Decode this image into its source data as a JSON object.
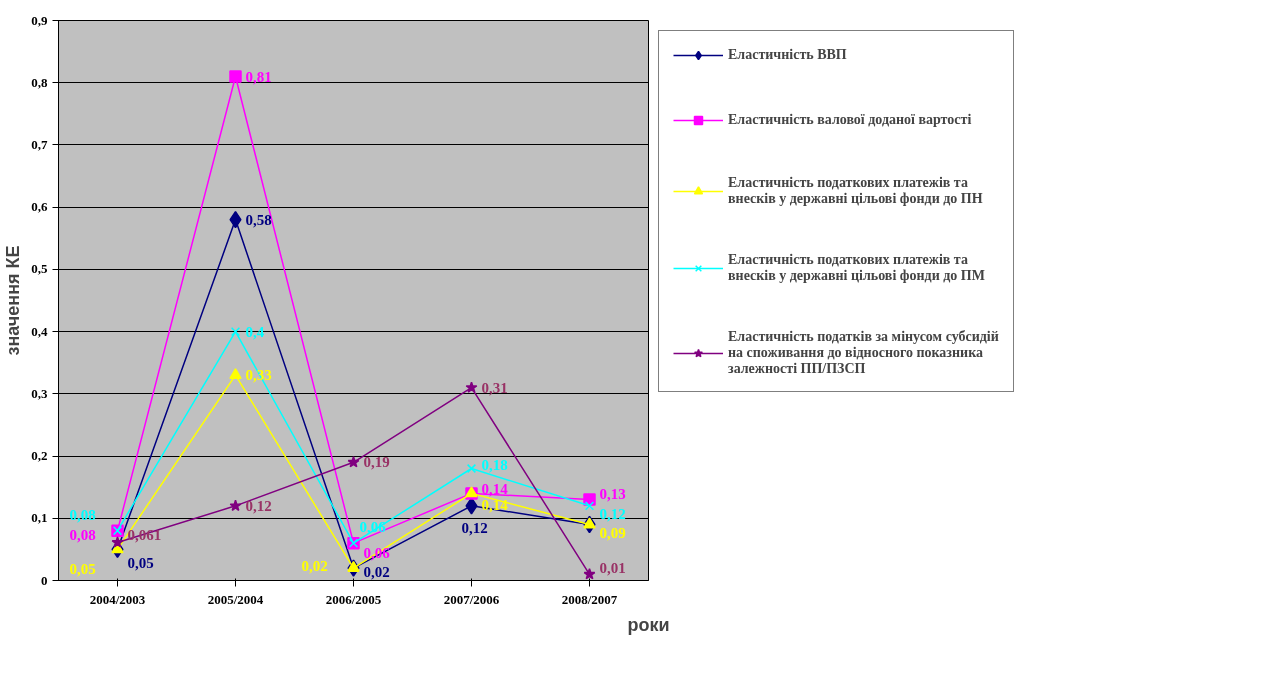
{
  "chart_data": {
    "type": "line",
    "xlabel": "роки",
    "ylabel": "значення КЕ",
    "categories": [
      "2004/2003",
      "2005/2004",
      "2006/2005",
      "2007/2006",
      "2008/2007"
    ],
    "ylim": [
      0,
      0.9
    ],
    "yticks": [
      {
        "value": 0,
        "label": "0"
      },
      {
        "value": 0.1,
        "label": "0,1"
      },
      {
        "value": 0.2,
        "label": "0,2"
      },
      {
        "value": 0.3,
        "label": "0,3"
      },
      {
        "value": 0.4,
        "label": "0,4"
      },
      {
        "value": 0.5,
        "label": "0,5"
      },
      {
        "value": 0.6,
        "label": "0,6"
      },
      {
        "value": 0.7,
        "label": "0,7"
      },
      {
        "value": 0.8,
        "label": "0,8"
      },
      {
        "value": 0.9,
        "label": "0,9"
      }
    ],
    "grid": "y",
    "legend": "right",
    "line_style": "solid",
    "series": [
      {
        "name": "Еластичність ВВП",
        "color": "#000080",
        "marker": "diamond",
        "values": [
          0.05,
          0.58,
          0.02,
          0.12,
          0.09
        ],
        "value_labels": [
          "0,05",
          "0,58",
          "0,02",
          "0,12",
          null
        ]
      },
      {
        "name": "Еластичність валової доданої вартості",
        "color": "#ff00ff",
        "marker": "square",
        "values": [
          0.08,
          0.81,
          0.06,
          0.14,
          0.13
        ],
        "value_labels": [
          "0,08",
          "0,81",
          "0,06",
          "0,14",
          "0,13"
        ]
      },
      {
        "name": "Еластичність податкових платежів та внесків у державні цільові фонди до ПН",
        "color": "#ffff00",
        "marker": "triangle",
        "values": [
          0.05,
          0.33,
          0.02,
          0.14,
          0.09
        ],
        "value_labels": [
          "0,05",
          "0,33",
          "0,02",
          "0,14",
          "0,09"
        ]
      },
      {
        "name": "Еластичність податкових платежів та внесків у державні цільові фонди до ПМ",
        "color": "#00ffff",
        "marker": "cross",
        "values": [
          0.08,
          0.4,
          0.06,
          0.18,
          0.12
        ],
        "value_labels": [
          "0,08",
          "0,4",
          "0,06",
          "0,18",
          "0,12"
        ]
      },
      {
        "name": "Еластичність податків за мінусом субсидій на споживання до відносного показника залежності ПП/ПЗСП",
        "color": "#800080",
        "marker": "star",
        "values": [
          0.061,
          0.12,
          0.19,
          0.31,
          0.01
        ],
        "value_labels": [
          "0,061",
          "0,12",
          "0,19",
          "0,31",
          "0,01"
        ]
      }
    ]
  }
}
